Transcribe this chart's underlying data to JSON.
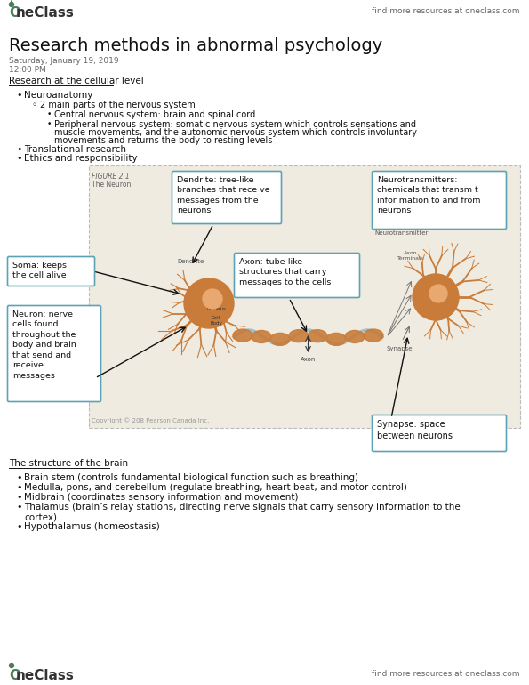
{
  "bg_color": "#ffffff",
  "header_right_text": "find more resources at oneclass.com",
  "footer_right_text": "find more resources at oneclass.com",
  "title": "Research methods in abnormal psychology",
  "date": "Saturday, January 19, 2019",
  "time": "12:00 PM",
  "section1_heading": "Research at the cellular level",
  "bullet1": "Neuroanatomy",
  "sub_bullet1": "2 main parts of the nervous system",
  "sub_sub_bullet1": "Central nervous system: brain and spinal cord",
  "pns_line1": "Peripheral nervous system: somatic nervous system which controls sensations and",
  "pns_line2": "muscle movements, and the autonomic nervous system which controls involuntary",
  "pns_line3": "movements and returns the body to resting levels",
  "bullet2": "Translational research",
  "bullet3": "Ethics and responsibility",
  "figure_label": "FIGURE 2.1",
  "figure_sublabel": "The Neuron.",
  "figure_copyright": "Copyright © 20​8 Pearson Canada Inc.",
  "callout_dendrite": "Dendrite: tree-like\nbranches that rece ve\nmessages from the\nneurons",
  "callout_neurotransmitter": "Neurotransmitters:\nchemicals that transm t\ninfor mation to and from\nneurons",
  "callout_soma": "Soma: keeps\nthe cell alive",
  "callout_axon": "Axon: tube-like\nstructures that carry\nmessages to the cells",
  "callout_neuron": "Neuron: nerve\ncells found\nthroughout the\nbody and brain\nthat send and\nreceive\nmessages",
  "callout_synapse": "Synapse: space\nbetween neurons",
  "section2_heading": "The structure of the brain",
  "brain_bullet1": "Brain stem (controls fundamental biological function such as breathing)",
  "brain_bullet2": "Medulla, pons, and cerebellum (regulate breathing, heart beat, and motor control)",
  "brain_bullet3": "Midbrain (coordinates sensory information and movement)",
  "brain_bullet4a": "Thalamus (brain’s relay stations, directing nerve signals that carry sensory information to the",
  "brain_bullet4b": "cortex)",
  "brain_bullet5": "Hypothalamus (homeostasis)",
  "oneclass_green": "#4a7c59",
  "text_color": "#1a1a1a",
  "gray_text": "#666666",
  "callout_border": "#5ba3b5",
  "figure_border": "#bbbbbb",
  "figure_bg": "#f0ebe0",
  "neuron_color": "#c97c3a",
  "neuron_dark": "#a05a20",
  "neuron_light": "#e8a870",
  "axon_blue": "#7ab0c8"
}
